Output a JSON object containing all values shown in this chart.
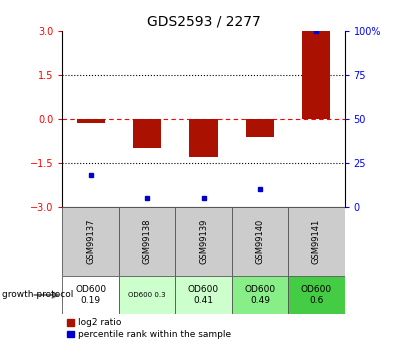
{
  "title": "GDS2593 / 2277",
  "samples": [
    "GSM99137",
    "GSM99138",
    "GSM99139",
    "GSM99140",
    "GSM99141"
  ],
  "log2_ratio": [
    -0.15,
    -1.0,
    -1.3,
    -0.6,
    3.0
  ],
  "percentile_rank": [
    18,
    5,
    5,
    10,
    100
  ],
  "bar_color": "#aa1100",
  "dot_color": "#0000cc",
  "ylim": [
    -3,
    3
  ],
  "yticks_left": [
    -3,
    -1.5,
    0,
    1.5,
    3
  ],
  "yticks_right_vals": [
    0,
    25,
    50,
    75,
    100
  ],
  "protocol_labels": [
    "OD600\n0.19",
    "OD600 0.3",
    "OD600\n0.41",
    "OD600\n0.49",
    "OD600\n0.6"
  ],
  "protocol_colors": [
    "#ffffff",
    "#ccffcc",
    "#ccffcc",
    "#88ee88",
    "#44cc44"
  ],
  "protocol_small_font": [
    false,
    true,
    false,
    false,
    false
  ],
  "legend_items": [
    {
      "color": "#aa1100",
      "label": "log2 ratio"
    },
    {
      "color": "#0000cc",
      "label": "percentile rank within the sample"
    }
  ],
  "growth_protocol_text": "growth protocol"
}
